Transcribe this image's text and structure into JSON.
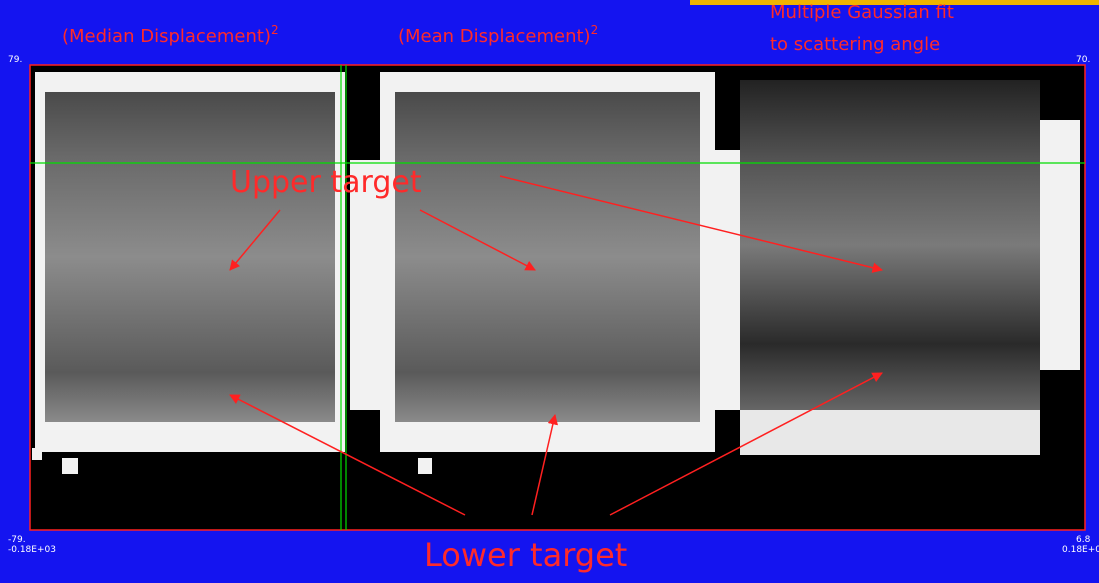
{
  "labels": {
    "median": {
      "text": "(Median Displacement)",
      "sup": "2"
    },
    "mean": {
      "text": "(Mean Displacement)",
      "sup": "2"
    },
    "gaussian": [
      "Multiple Gaussian fit",
      "to scattering angle"
    ]
  },
  "axis": {
    "top_left": "79.",
    "top_right": "70.",
    "bottom_left": [
      "-79.",
      "-0.18E+03"
    ],
    "bottom_right": [
      "6.8",
      "0.18E+0"
    ]
  },
  "annotations": {
    "upper": "Upper target",
    "lower": "Lower target"
  }
}
